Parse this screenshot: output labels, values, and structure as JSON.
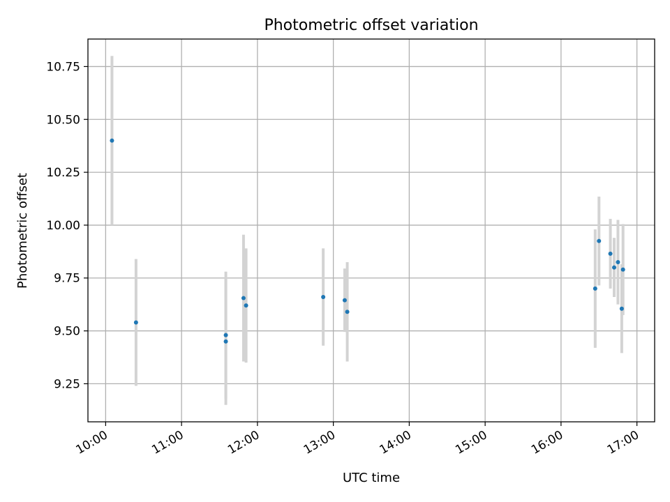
{
  "chart_data": {
    "type": "scatter",
    "title": "Photometric offset variation",
    "xlabel": "UTC time",
    "ylabel": "Photometric offset",
    "xlim": [
      "09:46",
      "17:14"
    ],
    "ylim": [
      9.07,
      10.88
    ],
    "x_ticks": [
      "10:00",
      "11:00",
      "12:00",
      "13:00",
      "14:00",
      "15:00",
      "16:00",
      "17:00"
    ],
    "y_ticks": [
      "9.25",
      "9.50",
      "9.75",
      "10.00",
      "10.25",
      "10.50",
      "10.75"
    ],
    "grid": true,
    "marker_color": "#1f77b4",
    "errorbar_color": "#d3d3d3",
    "points": [
      {
        "t": "10:05",
        "y": 10.4,
        "err": 0.4
      },
      {
        "t": "10:24",
        "y": 9.54,
        "err": 0.3
      },
      {
        "t": "11:35",
        "y": 9.48,
        "err": 0.3
      },
      {
        "t": "11:35",
        "y": 9.45,
        "err": 0.3
      },
      {
        "t": "11:49",
        "y": 9.655,
        "err": 0.3
      },
      {
        "t": "11:51",
        "y": 9.62,
        "err": 0.27
      },
      {
        "t": "12:52",
        "y": 9.66,
        "err": 0.23
      },
      {
        "t": "13:09",
        "y": 9.645,
        "err": 0.15
      },
      {
        "t": "13:11",
        "y": 9.59,
        "err": 0.235
      },
      {
        "t": "16:27",
        "y": 9.7,
        "err": 0.28
      },
      {
        "t": "16:30",
        "y": 9.925,
        "err": 0.21
      },
      {
        "t": "16:39",
        "y": 9.865,
        "err": 0.165
      },
      {
        "t": "16:42",
        "y": 9.8,
        "err": 0.14
      },
      {
        "t": "16:45",
        "y": 9.825,
        "err": 0.2
      },
      {
        "t": "16:48",
        "y": 9.605,
        "err": 0.21
      },
      {
        "t": "16:49",
        "y": 9.79,
        "err": 0.215
      }
    ]
  }
}
